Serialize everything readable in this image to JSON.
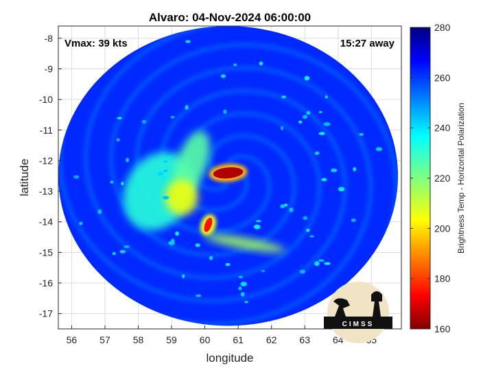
{
  "chart_data": {
    "type": "heatmap",
    "title": "Alvaro: 04-Nov-2024 06:00:00",
    "xlabel": "longitude",
    "ylabel": "latitude",
    "xlim": [
      55.6,
      65.9
    ],
    "ylim": [
      -17.5,
      -7.6
    ],
    "x_ticks": [
      56,
      57,
      58,
      59,
      60,
      61,
      62,
      63,
      64,
      65
    ],
    "y_ticks": [
      -8,
      -9,
      -10,
      -11,
      -12,
      -13,
      -14,
      -15,
      -16,
      -17
    ],
    "x_tick_labels": [
      "56",
      "57",
      "58",
      "59",
      "60",
      "61",
      "62",
      "63",
      "64",
      "65"
    ],
    "y_tick_labels": [
      "-8",
      "-9",
      "-10",
      "-11",
      "-12",
      "-13",
      "-14",
      "-15",
      "-16",
      "-17"
    ],
    "grid": true,
    "colormap": "jet",
    "colorbar": {
      "label": "Brightness Temp - Horizontal Polarization",
      "range": [
        160,
        280
      ],
      "ticks": [
        160,
        180,
        200,
        220,
        240,
        260,
        280
      ],
      "tick_labels": [
        "160",
        "180",
        "200",
        "220",
        "240",
        "260",
        "280"
      ]
    },
    "swath": {
      "center_lon": 60.7,
      "center_lat": -12.5,
      "radius_lon": 5.1,
      "radius_lat": 4.9
    },
    "background_tb": 262,
    "features": [
      {
        "kind": "cold-core",
        "lon": 60.7,
        "lat": -12.4,
        "tb": 165
      },
      {
        "kind": "cold-spot",
        "lon": 60.1,
        "lat": -14.1,
        "tb": 175
      },
      {
        "kind": "rainband",
        "lon": 59.3,
        "lat": -13.2,
        "tb": 205
      },
      {
        "kind": "rainband",
        "lon": 59.6,
        "lat": -12.1,
        "tb": 225
      },
      {
        "kind": "rainband",
        "lon": 61.2,
        "lat": -14.7,
        "tb": 215
      },
      {
        "kind": "rainband",
        "lon": 58.6,
        "lat": -13.0,
        "tb": 232
      }
    ],
    "annotations": {
      "vmax": "Vmax: 39 kts",
      "time_away": "15:27 away"
    },
    "logo_text": "CIMSS"
  }
}
